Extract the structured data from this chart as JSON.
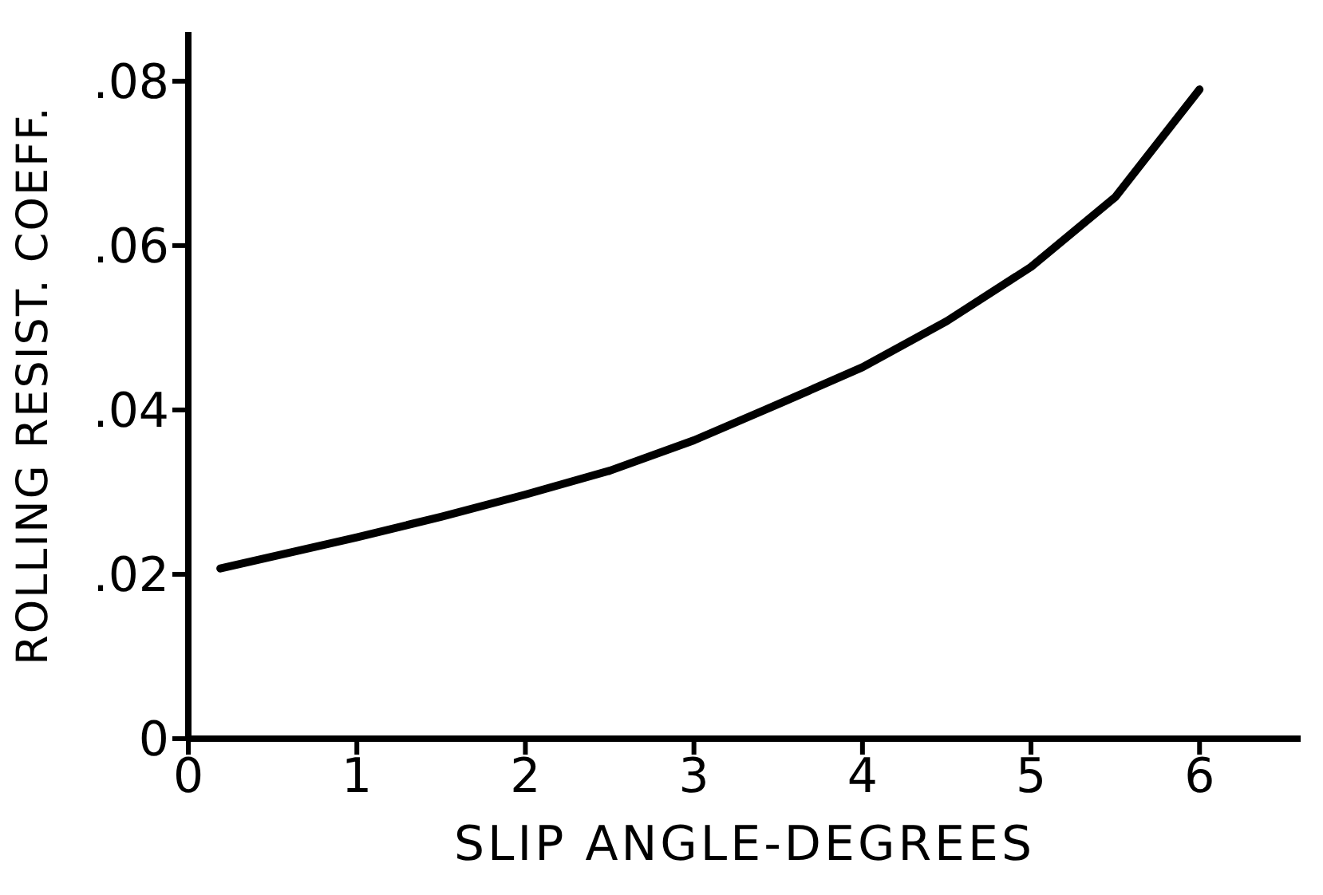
{
  "chart_data": {
    "type": "line",
    "xlabel": "SLIP ANGLE-DEGREES",
    "ylabel": "ROLLING RESIST. COEFF.",
    "x": [
      0.19,
      1,
      1.5,
      2,
      2.5,
      3,
      3.5,
      4,
      4.5,
      5,
      5.5,
      6
    ],
    "series": [
      {
        "color": "#000000",
        "values": [
          0.0207,
          0.0245,
          0.027,
          0.0297,
          0.0326,
          0.0363,
          0.0407,
          0.0452,
          0.0508,
          0.0574,
          0.0659,
          0.079
        ]
      }
    ],
    "xlim": [
      0,
      6.6
    ],
    "xticks": [
      0,
      1,
      2,
      3,
      4,
      5,
      6
    ],
    "ylim": [
      0,
      0.086
    ],
    "yticks": [
      0,
      {
        "value": 0.02,
        "label": ".02"
      },
      {
        "value": 0.04,
        "label": ".04"
      },
      {
        "value": 0.06,
        "label": ".06"
      },
      {
        "value": 0.08,
        "label": ".08"
      }
    ],
    "grid": false,
    "legend": false,
    "marker": "none",
    "line_style": "solid"
  }
}
